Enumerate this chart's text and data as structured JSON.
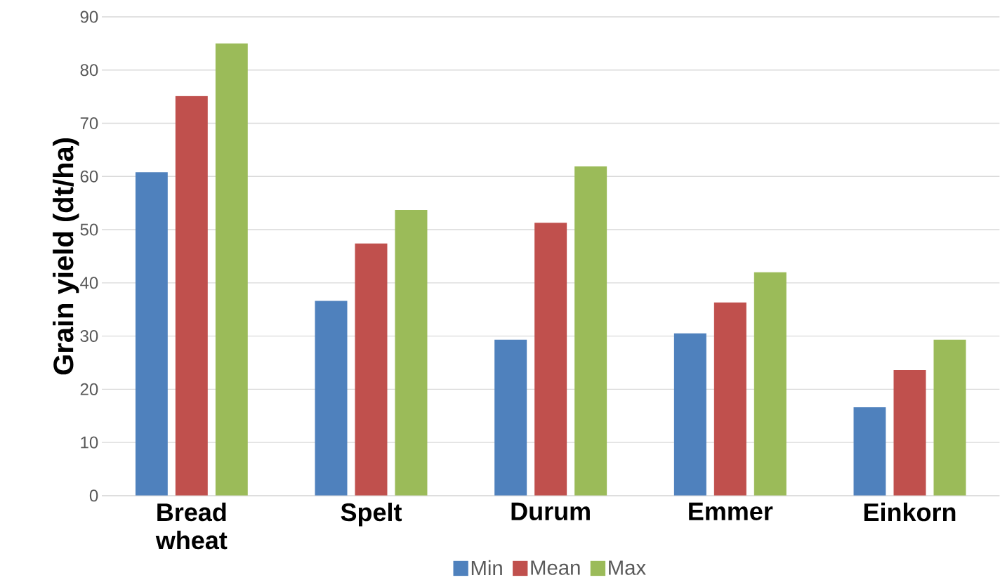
{
  "chart_data": {
    "type": "bar",
    "ylabel": "Grain yield (dt/ha)",
    "categories": [
      "Bread wheat",
      "Spelt",
      "Durum",
      "Emmer",
      "Einkorn"
    ],
    "series": [
      {
        "name": "Min",
        "color": "#4f81bd",
        "values": [
          60.8,
          36.6,
          29.3,
          30.5,
          16.6
        ]
      },
      {
        "name": "Mean",
        "color": "#c0504d",
        "values": [
          75.1,
          47.4,
          51.3,
          36.3,
          23.6
        ]
      },
      {
        "name": "Max",
        "color": "#9bbb59",
        "values": [
          85.0,
          53.7,
          61.9,
          42.0,
          29.3
        ]
      }
    ],
    "ylim": [
      0,
      90
    ],
    "yticks": [
      0,
      10,
      20,
      30,
      40,
      50,
      60,
      70,
      80,
      90
    ],
    "grid": "y",
    "legend": "bottom"
  }
}
